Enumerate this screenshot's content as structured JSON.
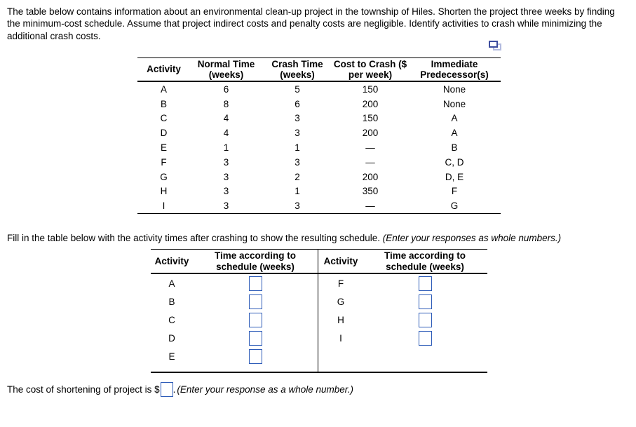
{
  "intro": "The table below contains information about an environmental clean-up project in the township of Hiles. Shorten the project three weeks by finding the minimum-cost schedule. Assume that project indirect costs and penalty costs are negligible. Identify activities to crash while minimizing the additional crash costs.",
  "icons": {
    "popout": "overlapping-windows-popout"
  },
  "crash_table": {
    "headers": [
      "Activity",
      "Normal Time (weeks)",
      "Crash Time (weeks)",
      "Cost to Crash ($ per week)",
      "Immediate Predecessor(s)"
    ],
    "rows": [
      {
        "activity": "A",
        "normal": "6",
        "crash": "5",
        "cost": "150",
        "pred": "None"
      },
      {
        "activity": "B",
        "normal": "8",
        "crash": "6",
        "cost": "200",
        "pred": "None"
      },
      {
        "activity": "C",
        "normal": "4",
        "crash": "3",
        "cost": "150",
        "pred": "A"
      },
      {
        "activity": "D",
        "normal": "4",
        "crash": "3",
        "cost": "200",
        "pred": "A"
      },
      {
        "activity": "E",
        "normal": "1",
        "crash": "1",
        "cost": "—",
        "pred": "B"
      },
      {
        "activity": "F",
        "normal": "3",
        "crash": "3",
        "cost": "—",
        "pred": "C, D"
      },
      {
        "activity": "G",
        "normal": "3",
        "crash": "2",
        "cost": "200",
        "pred": "D, E"
      },
      {
        "activity": "H",
        "normal": "3",
        "crash": "1",
        "cost": "350",
        "pred": "F"
      },
      {
        "activity": "I",
        "normal": "3",
        "crash": "3",
        "cost": "—",
        "pred": "G"
      }
    ]
  },
  "fill_instruction": {
    "text": "Fill in the table below with the activity times after crashing to show the resulting schedule. ",
    "note": "(Enter your responses as whole numbers.)"
  },
  "schedule_table": {
    "left": {
      "headers": [
        "Activity",
        "Time according to schedule (weeks)"
      ],
      "rows": [
        "A",
        "B",
        "C",
        "D",
        "E"
      ]
    },
    "right": {
      "headers": [
        "Activity",
        "Time according to schedule (weeks)"
      ],
      "rows": [
        "F",
        "G",
        "H",
        "I"
      ]
    },
    "input_value": ""
  },
  "cost_line": {
    "prefix": "The cost of shortening of project is $",
    "period": ".",
    "note": "(Enter your response as a whole number.)",
    "value": ""
  },
  "colors": {
    "answer_box_border": "#2e5cb8",
    "icon_front": "#3e4e9f",
    "icon_back": "#b3bbdf",
    "text": "#000000"
  }
}
